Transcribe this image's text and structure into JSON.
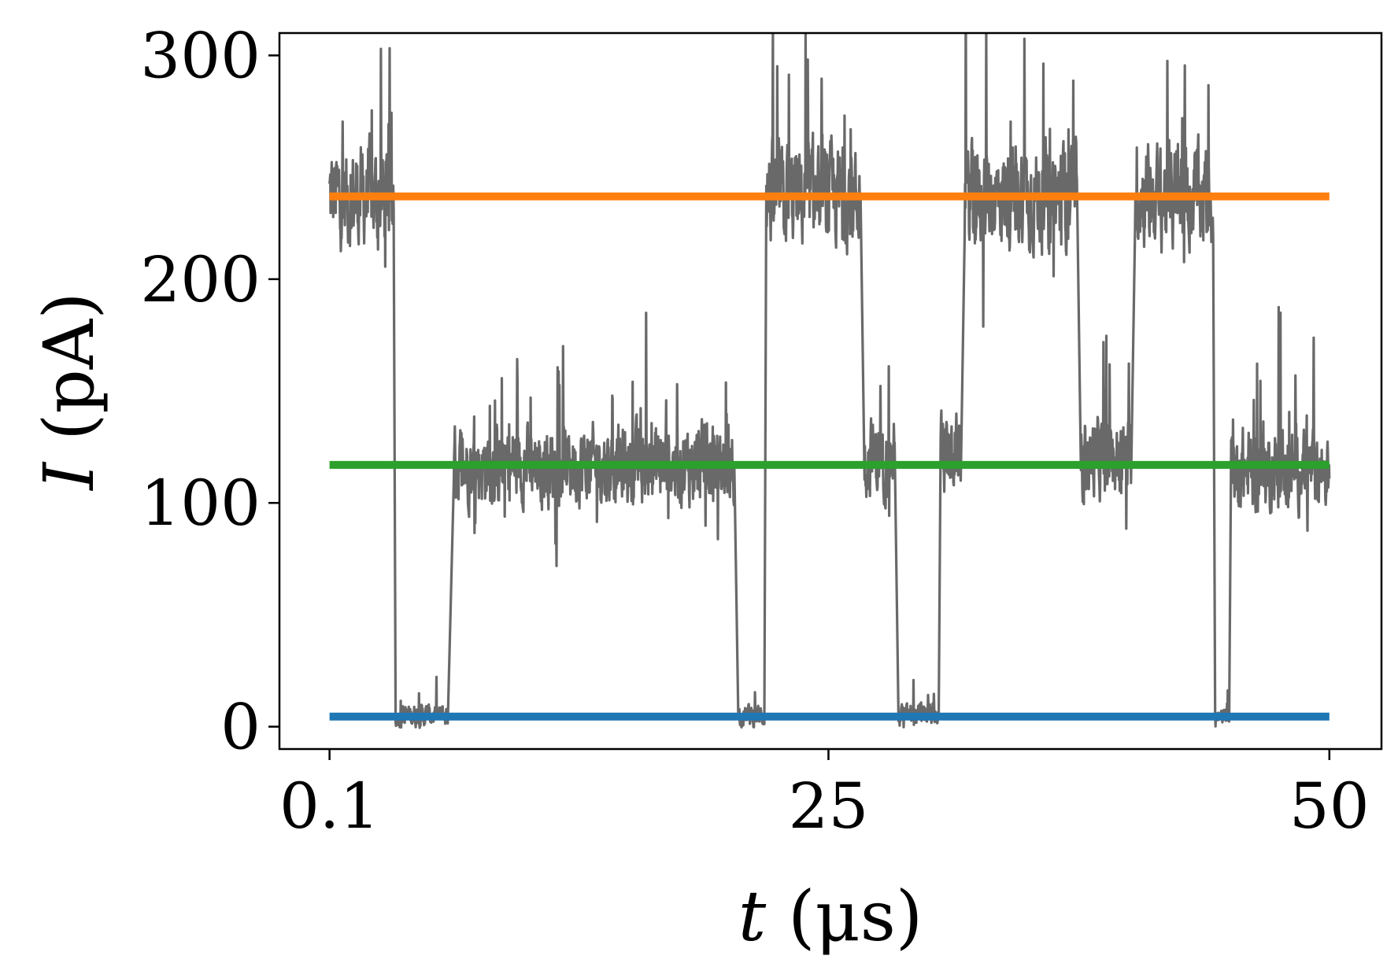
{
  "chart_data": {
    "type": "line",
    "xlabel": {
      "var": "t",
      "unit": "(μs)"
    },
    "ylabel": {
      "var": "I",
      "unit": "(pA)"
    },
    "xlim": [
      -2.4,
      52.6
    ],
    "ylim": [
      -10,
      310
    ],
    "x_ticks": [
      {
        "value": 0.1,
        "label": "0.1"
      },
      {
        "value": 25,
        "label": "25"
      },
      {
        "value": 50,
        "label": "50"
      }
    ],
    "y_ticks": [
      {
        "value": 0,
        "label": "0"
      },
      {
        "value": 100,
        "label": "100"
      },
      {
        "value": 200,
        "label": "200"
      },
      {
        "value": 300,
        "label": "300"
      }
    ],
    "grid": false,
    "series": [
      {
        "kind": "signal",
        "color": "#696969",
        "segments": [
          {
            "t0": 0.1,
            "t1": 3.3,
            "level": 237,
            "noise": 18,
            "spike": 55
          },
          {
            "t0": 3.4,
            "t1": 6.0,
            "level": 5,
            "noise": 4,
            "spike": 10
          },
          {
            "t0": 6.3,
            "t1": 20.3,
            "level": 117,
            "noise": 14,
            "spike": 45
          },
          {
            "t0": 20.5,
            "t1": 21.8,
            "level": 5,
            "noise": 4,
            "spike": 10
          },
          {
            "t0": 21.9,
            "t1": 26.6,
            "level": 237,
            "noise": 18,
            "spike": 58
          },
          {
            "t0": 26.8,
            "t1": 28.3,
            "level": 120,
            "noise": 14,
            "spike": 35
          },
          {
            "t0": 28.5,
            "t1": 30.5,
            "level": 5,
            "noise": 4,
            "spike": 15
          },
          {
            "t0": 30.6,
            "t1": 31.6,
            "level": 122,
            "noise": 14,
            "spike": 42
          },
          {
            "t0": 31.8,
            "t1": 37.4,
            "level": 237,
            "noise": 18,
            "spike": 65
          },
          {
            "t0": 37.6,
            "t1": 40.1,
            "level": 120,
            "noise": 14,
            "spike": 40
          },
          {
            "t0": 40.3,
            "t1": 44.2,
            "level": 237,
            "noise": 18,
            "spike": 45
          },
          {
            "t0": 44.3,
            "t1": 45.0,
            "level": 4,
            "noise": 3,
            "spike": 8
          },
          {
            "t0": 45.1,
            "t1": 50.0,
            "level": 115,
            "noise": 14,
            "spike": 58
          }
        ]
      },
      {
        "kind": "level",
        "color": "#ff7f0e",
        "x": [
          0.1,
          50
        ],
        "y": [
          237,
          237
        ]
      },
      {
        "kind": "level",
        "color": "#2ca02c",
        "x": [
          0.1,
          50
        ],
        "y": [
          117,
          117
        ]
      },
      {
        "kind": "level",
        "color": "#1f77b4",
        "x": [
          0.1,
          50
        ],
        "y": [
          4.5,
          4.5
        ]
      }
    ]
  }
}
